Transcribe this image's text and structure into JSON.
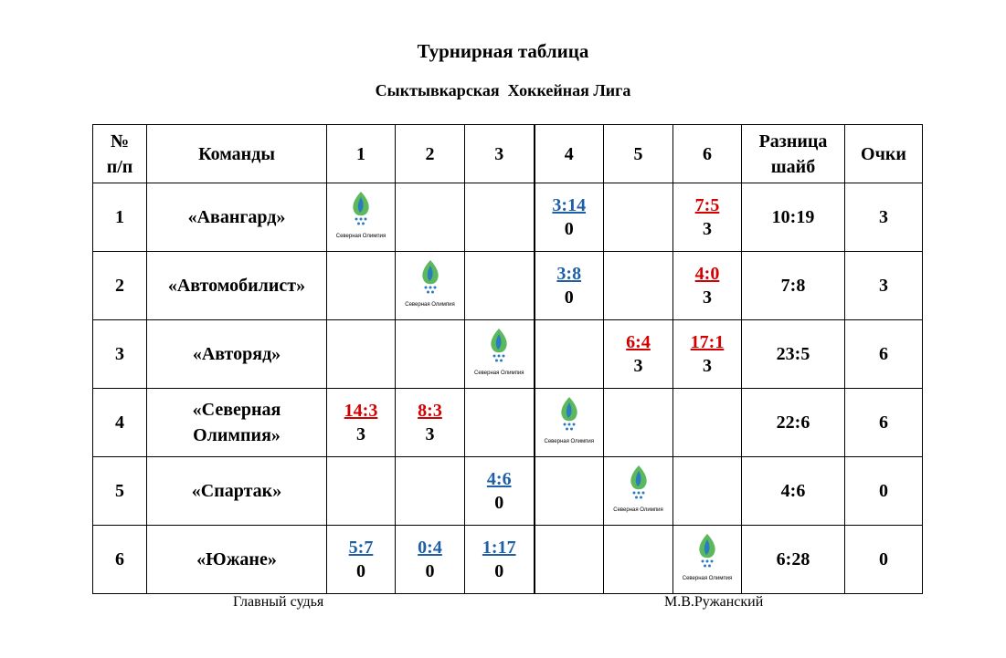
{
  "title": "Турнирная таблица",
  "subtitle": "Сыктывкарская  Хоккейная Лига",
  "logo_text": "Северная Олимпия",
  "win_color": "#d40000",
  "loss_color": "#1f5fa8",
  "table": {
    "header": [
      "№\nп/п",
      "Команды",
      "1",
      "2",
      "3",
      "4",
      "5",
      "6",
      "Разница\nшайб",
      "Очки"
    ],
    "rows": [
      {
        "num": "1",
        "team": "«Авангард»",
        "games": [
          null,
          null,
          null,
          {
            "score": "3:14",
            "points": "0",
            "win": false
          },
          null,
          {
            "score": "7:5",
            "points": "3",
            "win": true
          }
        ],
        "diff": "10:19",
        "pts": "3"
      },
      {
        "num": "2",
        "team": "«Автомобилист»",
        "games": [
          null,
          null,
          null,
          {
            "score": "3:8",
            "points": "0",
            "win": false
          },
          null,
          {
            "score": "4:0",
            "points": "3",
            "win": true
          }
        ],
        "diff": "7:8",
        "pts": "3"
      },
      {
        "num": "3",
        "team": "«Авторяд»",
        "games": [
          null,
          null,
          null,
          null,
          {
            "score": "6:4",
            "points": "3",
            "win": true
          },
          {
            "score": "17:1",
            "points": "3",
            "win": true
          }
        ],
        "diff": "23:5",
        "pts": "6"
      },
      {
        "num": "4",
        "team": "«Северная\nОлимпия»",
        "games": [
          {
            "score": "14:3",
            "points": "3",
            "win": true
          },
          {
            "score": "8:3",
            "points": "3",
            "win": true
          },
          null,
          null,
          null,
          null
        ],
        "diff": "22:6",
        "pts": "6"
      },
      {
        "num": "5",
        "team": "«Спартак»",
        "games": [
          null,
          null,
          {
            "score": "4:6",
            "points": "0",
            "win": false
          },
          null,
          null,
          null
        ],
        "diff": "4:6",
        "pts": "0"
      },
      {
        "num": "6",
        "team": "«Южане»",
        "games": [
          {
            "score": "5:7",
            "points": "0",
            "win": false
          },
          {
            "score": "0:4",
            "points": "0",
            "win": false
          },
          {
            "score": "1:17",
            "points": "0",
            "win": false
          },
          null,
          null,
          null
        ],
        "diff": "6:28",
        "pts": "0"
      }
    ]
  },
  "footer": {
    "left": "Главный судья",
    "right": "М.В.Ружанский"
  }
}
